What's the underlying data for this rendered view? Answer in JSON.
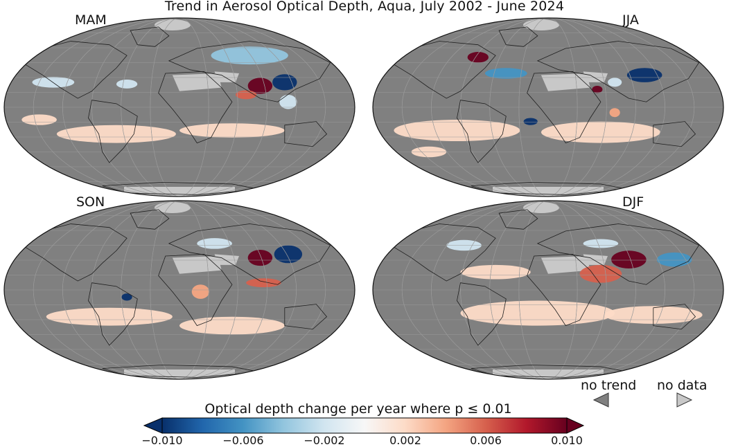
{
  "title": "Trend in Aerosol Optical Depth, Aqua, July 2002 - June 2024",
  "panels": [
    {
      "label": "MAM"
    },
    {
      "label": "JJA"
    },
    {
      "label": "SON"
    },
    {
      "label": "DJF"
    }
  ],
  "legend": {
    "no_trend": "no trend",
    "no_data": "no data",
    "no_trend_color": "#808080",
    "no_data_color": "#c8c8c8"
  },
  "colorbar": {
    "title": "Optical depth change per year where p ≤ 0.01",
    "min": -0.01,
    "max": 0.01,
    "ticks": [
      "−0.010",
      "−0.006",
      "−0.002",
      "0.002",
      "0.006",
      "0.010"
    ],
    "extend": "both",
    "colors": [
      "#08306b",
      "#2166ac",
      "#4393c3",
      "#92c5de",
      "#d1e5f0",
      "#f7f7f7",
      "#fddbc7",
      "#f4a582",
      "#d6604d",
      "#b2182b",
      "#67001f"
    ]
  }
}
